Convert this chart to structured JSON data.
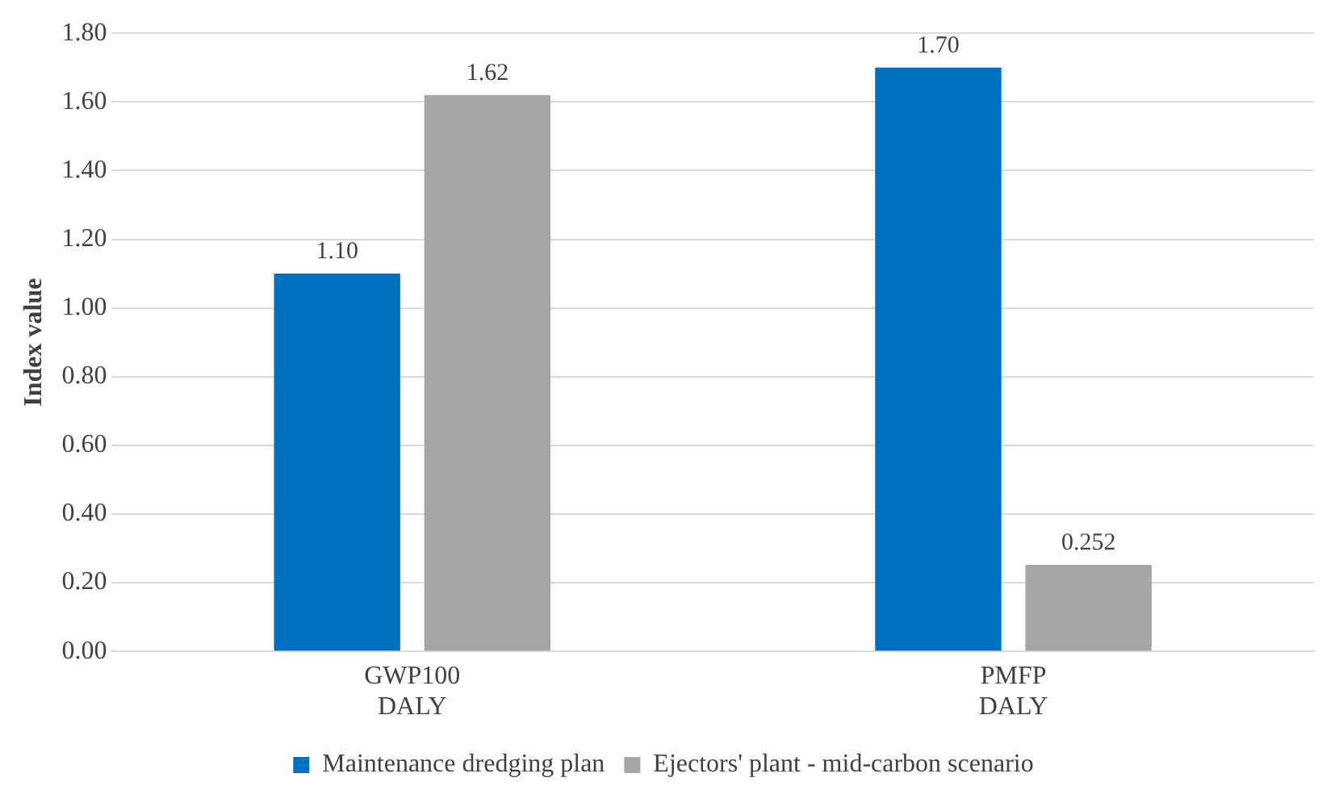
{
  "chart_data": {
    "type": "bar",
    "ylabel": "Index value",
    "categories": [
      "GWP100\nDALY",
      "PMFP\nDALY"
    ],
    "series": [
      {
        "name": "Maintenance dredging plan",
        "color": "#0070c0",
        "values": [
          1.1,
          1.7
        ],
        "value_labels": [
          "1.10",
          "1.70"
        ]
      },
      {
        "name": "Ejectors' plant - mid-carbon scenario",
        "color": "#a5a5a5",
        "values": [
          1.62,
          0.252
        ],
        "value_labels": [
          "1.62",
          "0.252"
        ]
      }
    ],
    "ylim": [
      0,
      1.8
    ],
    "yticks": [
      {
        "value": 0,
        "label": "0.00"
      },
      {
        "value": 0.2,
        "label": "0.20"
      },
      {
        "value": 0.4,
        "label": "0.40"
      },
      {
        "value": 0.6,
        "label": "0.60"
      },
      {
        "value": 0.8,
        "label": "0.80"
      },
      {
        "value": 1,
        "label": "1.00"
      },
      {
        "value": 1.2,
        "label": "1.20"
      },
      {
        "value": 1.4,
        "label": "1.40"
      },
      {
        "value": 1.6,
        "label": "1.60"
      },
      {
        "value": 1.8,
        "label": "1.80"
      }
    ],
    "grid": "y",
    "legend": "bottom"
  }
}
